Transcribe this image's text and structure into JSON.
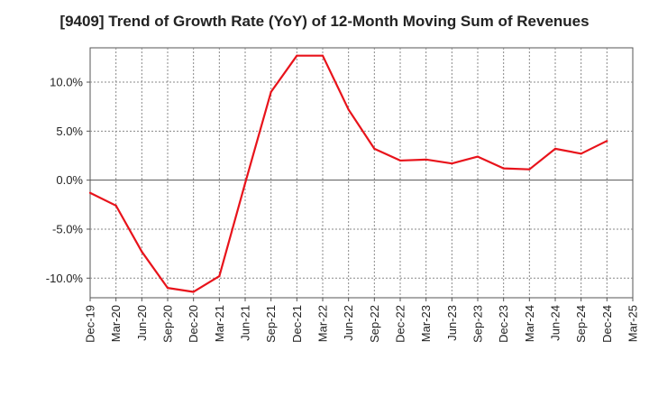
{
  "chart_data": {
    "type": "line",
    "title": "[9409]  Trend of Growth Rate (YoY) of 12-Month Moving Sum of Revenues",
    "xlabel": "",
    "ylabel": "",
    "categories": [
      "Dec-19",
      "Mar-20",
      "Jun-20",
      "Sep-20",
      "Dec-20",
      "Mar-21",
      "Jun-21",
      "Sep-21",
      "Dec-21",
      "Mar-22",
      "Jun-22",
      "Sep-22",
      "Dec-22",
      "Mar-23",
      "Jun-23",
      "Sep-23",
      "Dec-23",
      "Mar-24",
      "Jun-24",
      "Sep-24",
      "Dec-24",
      "Mar-25"
    ],
    "series": [
      {
        "values": [
          -1.3,
          -2.6,
          -7.3,
          -11.0,
          -11.4,
          -9.8,
          -0.3,
          9.0,
          12.7,
          12.7,
          7.2,
          3.2,
          2.0,
          2.1,
          1.7,
          2.4,
          1.2,
          1.1,
          3.2,
          2.7,
          4.0,
          null
        ],
        "color": "#e8131b"
      }
    ],
    "ylim": [
      -12,
      13.5
    ],
    "yticks": [
      -10,
      -5,
      0,
      5,
      10
    ],
    "ytick_labels": [
      "-10.0%",
      "-5.0%",
      "0.0%",
      "5.0%",
      "10.0%"
    ],
    "grid": true
  }
}
